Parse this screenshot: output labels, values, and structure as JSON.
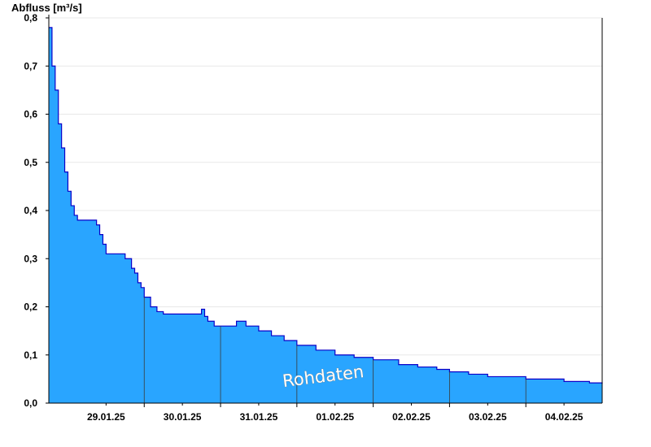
{
  "chart_data": {
    "type": "area",
    "ylabel": "Abfluss [m³/s]",
    "xlabel": "",
    "ylim": [
      0,
      0.8
    ],
    "yticks": [
      "0,0",
      "0,1",
      "0,2",
      "0,3",
      "0,4",
      "0,5",
      "0,6",
      "0,7",
      "0,8"
    ],
    "yticks_values": [
      0,
      0.1,
      0.2,
      0.3,
      0.4,
      0.5,
      0.6,
      0.7,
      0.8
    ],
    "x_ticks": [
      "29.01.25",
      "30.01.25",
      "31.01.25",
      "01.02.25",
      "02.02.25",
      "03.02.25",
      "04.02.25"
    ],
    "xlim": [
      "28.01.25 18:00",
      "05.02.25 00:00"
    ],
    "grid": true,
    "annotation": "Rohdaten",
    "colors": {
      "fill": "#29a5ff",
      "line": "#0a00c8",
      "grid": "#e8e8e8",
      "day_line": "#3a3a3a"
    },
    "series": [
      {
        "x": [
          "28.01.25 18:00",
          "28.01.25 19:00",
          "28.01.25 20:00",
          "28.01.25 21:00",
          "28.01.25 22:00",
          "28.01.25 23:00",
          "29.01.25 00:00",
          "29.01.25 01:00",
          "29.01.25 02:00",
          "29.01.25 03:00",
          "29.01.25 04:00",
          "29.01.25 05:00",
          "29.01.25 06:00",
          "29.01.25 07:00",
          "29.01.25 08:00",
          "29.01.25 09:00",
          "29.01.25 10:00",
          "29.01.25 11:00",
          "29.01.25 12:00",
          "29.01.25 18:00",
          "29.01.25 20:00",
          "29.01.25 21:00",
          "29.01.25 22:00",
          "29.01.25 23:00",
          "30.01.25 00:00",
          "30.01.25 02:00",
          "30.01.25 04:00",
          "30.01.25 06:00",
          "30.01.25 08:00",
          "30.01.25 10:00",
          "30.01.25 12:00",
          "30.01.25 18:00",
          "30.01.25 19:00",
          "30.01.25 20:00",
          "30.01.25 22:00",
          "31.01.25 00:00",
          "31.01.25 05:00",
          "31.01.25 08:00",
          "31.01.25 12:00",
          "31.01.25 16:00",
          "31.01.25 20:00",
          "01.02.25 00:00",
          "01.02.25 06:00",
          "01.02.25 12:00",
          "01.02.25 18:00",
          "02.02.25 00:00",
          "02.02.25 08:00",
          "02.02.25 14:00",
          "02.02.25 20:00",
          "03.02.25 00:00",
          "03.02.25 06:00",
          "03.02.25 12:00",
          "04.02.25 00:00",
          "04.02.25 12:00",
          "04.02.25 20:00",
          "05.02.25 00:00"
        ],
        "y": [
          0.78,
          0.7,
          0.65,
          0.58,
          0.53,
          0.48,
          0.44,
          0.41,
          0.39,
          0.38,
          0.38,
          0.38,
          0.38,
          0.38,
          0.38,
          0.37,
          0.35,
          0.33,
          0.31,
          0.3,
          0.28,
          0.27,
          0.25,
          0.24,
          0.22,
          0.2,
          0.19,
          0.185,
          0.185,
          0.185,
          0.185,
          0.195,
          0.18,
          0.17,
          0.16,
          0.16,
          0.17,
          0.16,
          0.15,
          0.14,
          0.13,
          0.12,
          0.11,
          0.1,
          0.095,
          0.09,
          0.08,
          0.075,
          0.07,
          0.065,
          0.06,
          0.055,
          0.05,
          0.045,
          0.042,
          0.04
        ]
      }
    ]
  }
}
